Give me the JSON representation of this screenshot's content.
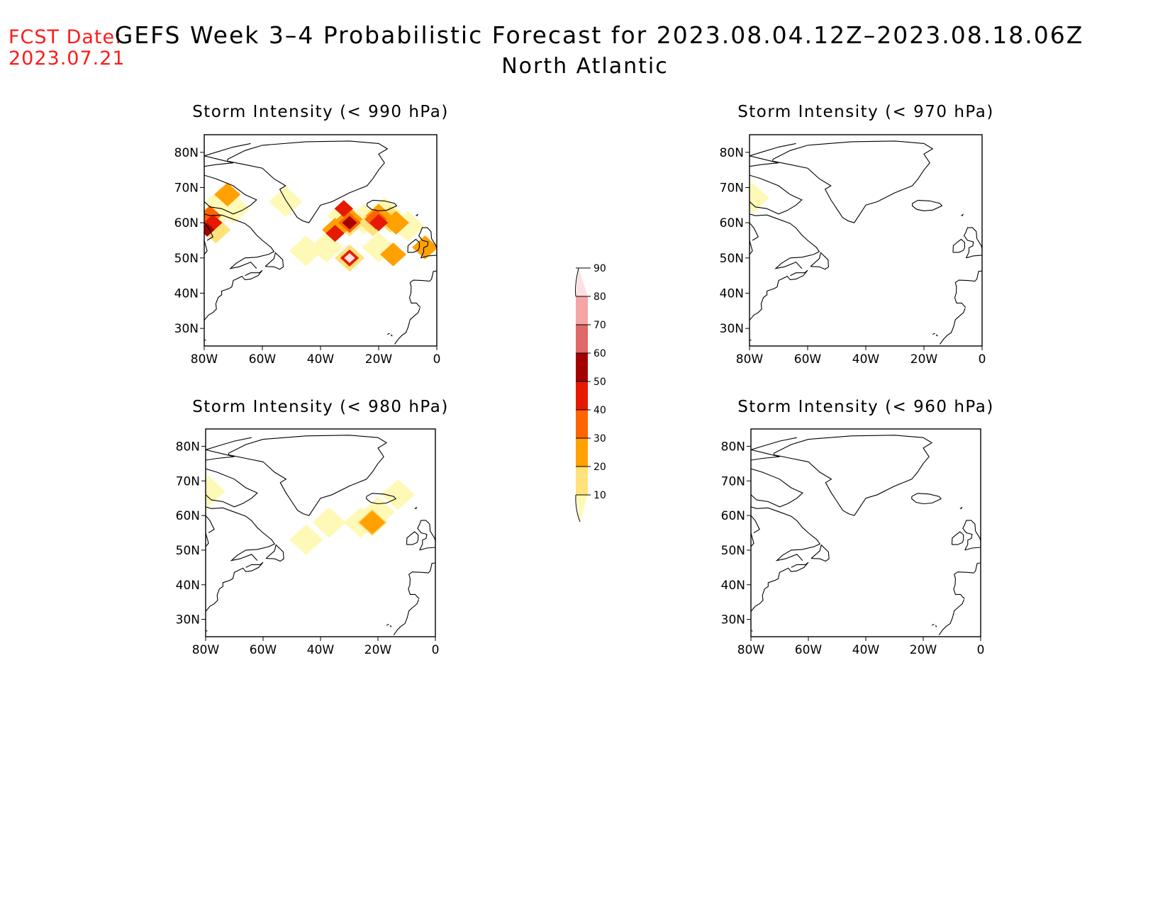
{
  "header": {
    "fcst_label": "FCST Date:",
    "fcst_date": "2023.07.21",
    "title": "GEFS Week 3–4 Probabilistic Forecast for 2023.08.04.12Z–2023.08.18.06Z",
    "subtitle": "North Atlantic"
  },
  "colors": {
    "fcst_text": "#ff1a1a",
    "coastline": "#000000",
    "scale": [
      "#fff9b8",
      "#ffe27a",
      "#ffa100",
      "#ff6400",
      "#e61a00",
      "#a50000",
      "#e06868",
      "#f5a5a5",
      "#fde0e6"
    ]
  },
  "map_axes": {
    "lon_ticks": [
      "80W",
      "60W",
      "40W",
      "20W",
      "0"
    ],
    "lat_ticks": [
      "80N",
      "70N",
      "60N",
      "50N",
      "40N",
      "30N"
    ],
    "lon_range": [
      -80,
      0
    ],
    "lat_range": [
      25,
      85
    ]
  },
  "panels": [
    {
      "title": "Storm Intensity (< 990 hPa)",
      "blobs": [
        {
          "lon": -78,
          "lat": 61,
          "level": 1
        },
        {
          "lon": -74,
          "lat": 66,
          "level": 1
        },
        {
          "lon": -70,
          "lat": 64,
          "level": 1
        },
        {
          "lon": -76,
          "lat": 58,
          "level": 2
        },
        {
          "lon": -72,
          "lat": 68,
          "level": 3
        },
        {
          "lon": -78,
          "lat": 62,
          "level": 4
        },
        {
          "lon": -77,
          "lat": 60,
          "level": 5
        },
        {
          "lon": -79,
          "lat": 58,
          "level": 6
        },
        {
          "lon": -52,
          "lat": 66,
          "level": 1
        },
        {
          "lon": -45,
          "lat": 52,
          "level": 1
        },
        {
          "lon": -38,
          "lat": 53,
          "level": 1
        },
        {
          "lon": -32,
          "lat": 62,
          "level": 1
        },
        {
          "lon": -25,
          "lat": 61,
          "level": 1
        },
        {
          "lon": -18,
          "lat": 63,
          "level": 1
        },
        {
          "lon": -10,
          "lat": 59,
          "level": 1
        },
        {
          "lon": -30,
          "lat": 60,
          "level": 2
        },
        {
          "lon": -22,
          "lat": 60,
          "level": 2
        },
        {
          "lon": -16,
          "lat": 61,
          "level": 2
        },
        {
          "lon": -35,
          "lat": 58,
          "level": 3
        },
        {
          "lon": -30,
          "lat": 61,
          "level": 3
        },
        {
          "lon": -20,
          "lat": 62,
          "level": 3
        },
        {
          "lon": -14,
          "lat": 60,
          "level": 3
        },
        {
          "lon": -30,
          "lat": 60,
          "level": 4
        },
        {
          "lon": -21,
          "lat": 61,
          "level": 4
        },
        {
          "lon": -35,
          "lat": 57,
          "level": 5
        },
        {
          "lon": -30,
          "lat": 60,
          "level": 6
        },
        {
          "lon": -20,
          "lat": 60,
          "level": 5
        },
        {
          "lon": -32,
          "lat": 64,
          "level": 5
        },
        {
          "lon": -30,
          "lat": 50,
          "level": 2
        },
        {
          "lon": -30,
          "lat": 50,
          "level": 5
        },
        {
          "lon": -30,
          "lat": 50,
          "level": 9
        },
        {
          "lon": -15,
          "lat": 51,
          "level": 3
        },
        {
          "lon": -20,
          "lat": 53,
          "level": 1
        },
        {
          "lon": -4,
          "lat": 53,
          "level": 3
        }
      ]
    },
    {
      "title": "Storm Intensity (< 970 hPa)",
      "blobs": [
        {
          "lon": -79,
          "lat": 67,
          "level": 1
        }
      ]
    },
    {
      "title": "Storm Intensity (< 980 hPa)",
      "blobs": [
        {
          "lon": -79,
          "lat": 67,
          "level": 1
        },
        {
          "lon": -37,
          "lat": 58,
          "level": 1
        },
        {
          "lon": -45,
          "lat": 53,
          "level": 1
        },
        {
          "lon": -26,
          "lat": 58,
          "level": 1
        },
        {
          "lon": -20,
          "lat": 61,
          "level": 1
        },
        {
          "lon": -13,
          "lat": 66,
          "level": 1
        },
        {
          "lon": -22,
          "lat": 58,
          "level": 2
        },
        {
          "lon": -22,
          "lat": 58,
          "level": 3
        }
      ]
    },
    {
      "title": "Storm Intensity (< 960 hPa)",
      "blobs": []
    }
  ],
  "colorbar": {
    "labels": [
      "10",
      "20",
      "30",
      "40",
      "50",
      "60",
      "70",
      "80",
      "90"
    ]
  }
}
